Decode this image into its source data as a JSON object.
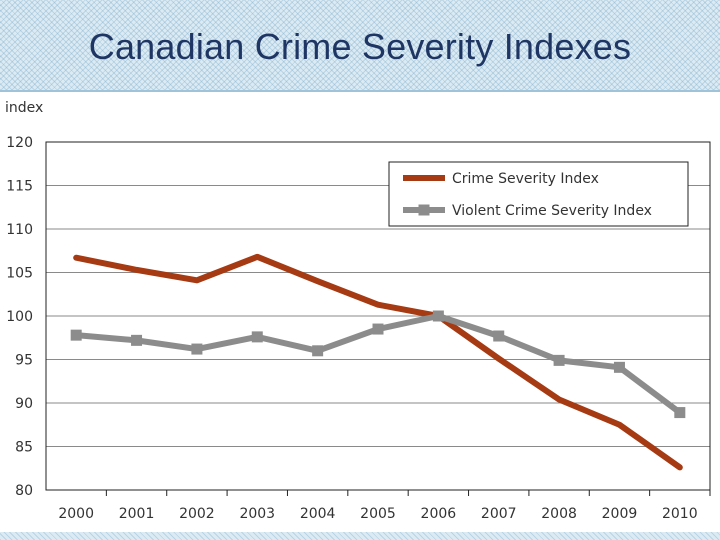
{
  "slide": {
    "title": "Canadian Crime Severity Indexes"
  },
  "chart_data": {
    "type": "line",
    "ylabel": "index",
    "xlabel": "",
    "ylim": [
      80,
      120
    ],
    "yticks": [
      80,
      85,
      90,
      95,
      100,
      105,
      110,
      115,
      120
    ],
    "grid": true,
    "legend_position": "top-right",
    "categories": [
      "2000",
      "2001",
      "2002",
      "2003",
      "2004",
      "2005",
      "2006",
      "2007",
      "2008",
      "2009",
      "2010"
    ],
    "series": [
      {
        "name": "Crime Severity Index",
        "color": "#a63a12",
        "marker": "none",
        "values": [
          106.7,
          105.3,
          104.1,
          106.8,
          104.0,
          101.3,
          100.0,
          95.1,
          90.4,
          87.5,
          82.6
        ]
      },
      {
        "name": "Violent Crime Severity Index",
        "color": "#8c8c8c",
        "marker": "square",
        "values": [
          97.8,
          97.2,
          96.2,
          97.6,
          96.0,
          98.5,
          100.0,
          97.7,
          94.9,
          94.1,
          88.9
        ]
      }
    ]
  }
}
